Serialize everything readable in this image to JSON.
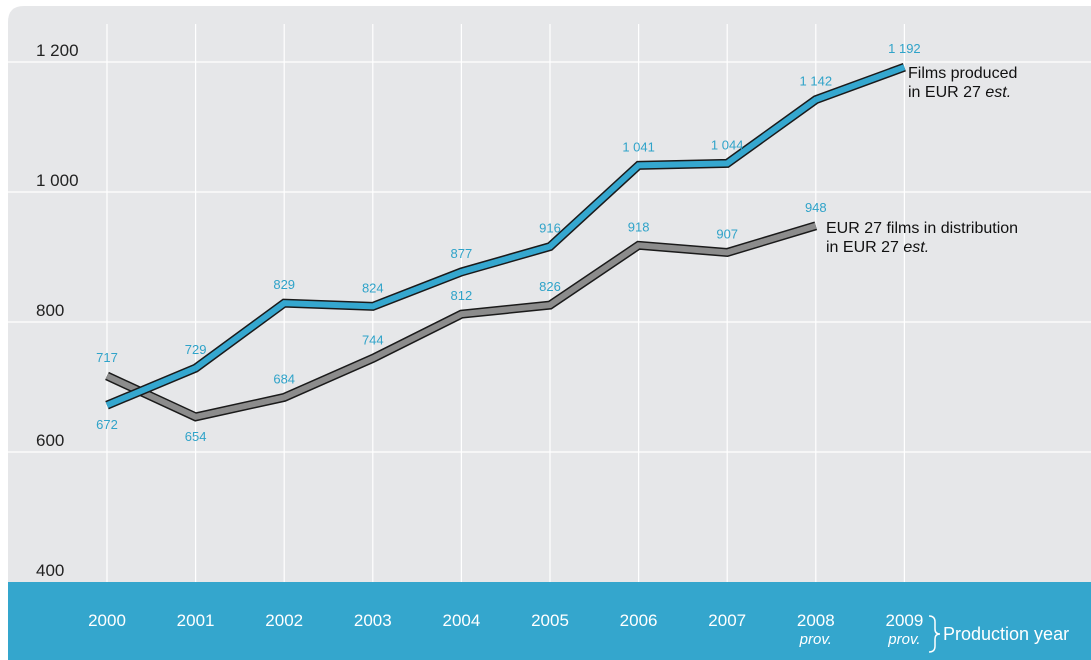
{
  "chart_data": {
    "type": "line",
    "x": [
      "2000",
      "2001",
      "2002",
      "2003",
      "2004",
      "2005",
      "2006",
      "2007",
      "2008",
      "2009"
    ],
    "x_sublabels": [
      "",
      "",
      "",
      "",
      "",
      "",
      "",
      "",
      "prov.",
      "prov."
    ],
    "xlabel": "Production year",
    "ylabel": "",
    "ylim": [
      400,
      1200
    ],
    "yticks": [
      400,
      600,
      800,
      1000,
      1200
    ],
    "ytick_labels": [
      "400",
      "600",
      "800",
      "1 000",
      "1 200"
    ],
    "grid": true,
    "series": [
      {
        "name_lines": [
          "Films produced",
          "in EUR 27 "
        ],
        "name_suffix": "est.",
        "values": [
          672,
          729,
          829,
          824,
          877,
          916,
          1041,
          1044,
          1142,
          1192
        ],
        "labels": [
          "672",
          "729",
          "829",
          "824",
          "877",
          "916",
          "1 041",
          "1 044",
          "1 142",
          "1 192"
        ],
        "color": "#35a7cf"
      },
      {
        "name_lines": [
          "EUR 27 films in distribution",
          "in EUR 27  "
        ],
        "name_suffix": "est.",
        "values": [
          717,
          654,
          684,
          744,
          812,
          826,
          918,
          907,
          948,
          null
        ],
        "labels": [
          "717",
          "654",
          "684",
          "744",
          "812",
          "826",
          "918",
          "907",
          "948",
          ""
        ],
        "color": "#8c8c8c"
      }
    ],
    "colors": {
      "background": "#e6e7e9",
      "axis_band": "#34a6cd",
      "gridline": "#ffffff",
      "label_color": "#2fa3c9"
    }
  }
}
